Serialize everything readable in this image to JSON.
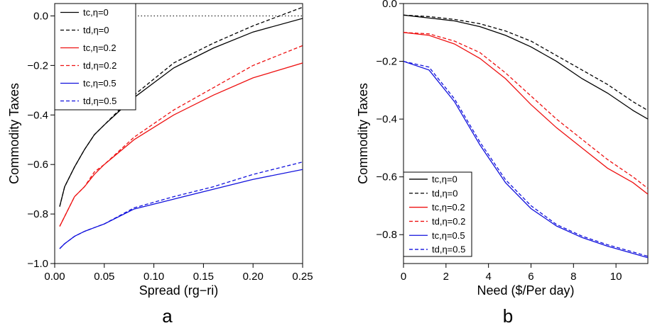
{
  "chart_data": [
    {
      "type": "line",
      "panel_label": "a",
      "xlabel": "Spread (rg−ri)",
      "ylabel": "Commodity Taxes",
      "xlim": [
        0.0,
        0.25
      ],
      "ylim": [
        -1.0,
        0.05
      ],
      "xticks": [
        0.0,
        0.05,
        0.1,
        0.15,
        0.2,
        0.25
      ],
      "xtick_labels": [
        "0.00",
        "0.05",
        "0.10",
        "0.15",
        "0.20",
        "0.25"
      ],
      "yticks": [
        -1.0,
        -0.8,
        -0.6,
        -0.4,
        -0.2,
        0.0
      ],
      "ytick_labels": [
        "−1.0",
        "−0.8",
        "−0.6",
        "−0.4",
        "−0.2",
        "0.0"
      ],
      "reference_line": {
        "y": 0.0,
        "style": "dotted"
      },
      "legend_position": "top-left",
      "series": [
        {
          "name": "tc,η=0",
          "color": "#000000",
          "dash": "solid",
          "x": [
            0.005,
            0.01,
            0.02,
            0.03,
            0.04,
            0.05,
            0.08,
            0.12,
            0.16,
            0.2,
            0.25
          ],
          "y": [
            -0.77,
            -0.69,
            -0.61,
            -0.54,
            -0.48,
            -0.44,
            -0.33,
            -0.21,
            -0.13,
            -0.065,
            -0.01
          ]
        },
        {
          "name": "td,η=0",
          "color": "#000000",
          "dash": "dashed",
          "x": [
            0.005,
            0.01,
            0.02,
            0.03,
            0.04,
            0.05,
            0.08,
            0.12,
            0.16,
            0.2,
            0.25
          ],
          "y": [
            -0.77,
            -0.69,
            -0.61,
            -0.54,
            -0.48,
            -0.44,
            -0.32,
            -0.19,
            -0.11,
            -0.04,
            0.035
          ]
        },
        {
          "name": "tc,η=0.2",
          "color": "#ee1111",
          "dash": "solid",
          "x": [
            0.005,
            0.01,
            0.02,
            0.03,
            0.04,
            0.05,
            0.08,
            0.12,
            0.16,
            0.2,
            0.25
          ],
          "y": [
            -0.85,
            -0.81,
            -0.73,
            -0.69,
            -0.64,
            -0.6,
            -0.5,
            -0.4,
            -0.32,
            -0.25,
            -0.19
          ]
        },
        {
          "name": "td,η=0.2",
          "color": "#ee1111",
          "dash": "dashed",
          "x": [
            0.005,
            0.01,
            0.02,
            0.03,
            0.04,
            0.05,
            0.08,
            0.12,
            0.16,
            0.2,
            0.25
          ],
          "y": [
            -0.85,
            -0.81,
            -0.73,
            -0.69,
            -0.63,
            -0.6,
            -0.49,
            -0.38,
            -0.29,
            -0.2,
            -0.12
          ]
        },
        {
          "name": "tc,η=0.5",
          "color": "#1111dd",
          "dash": "solid",
          "x": [
            0.005,
            0.01,
            0.02,
            0.03,
            0.04,
            0.05,
            0.08,
            0.12,
            0.16,
            0.2,
            0.25
          ],
          "y": [
            -0.94,
            -0.92,
            -0.89,
            -0.87,
            -0.855,
            -0.84,
            -0.78,
            -0.74,
            -0.7,
            -0.66,
            -0.62
          ]
        },
        {
          "name": "td,η=0.5",
          "color": "#1111dd",
          "dash": "dashed",
          "x": [
            0.005,
            0.01,
            0.02,
            0.03,
            0.04,
            0.05,
            0.08,
            0.12,
            0.16,
            0.2,
            0.25
          ],
          "y": [
            -0.94,
            -0.92,
            -0.89,
            -0.87,
            -0.855,
            -0.84,
            -0.775,
            -0.73,
            -0.69,
            -0.64,
            -0.59
          ]
        }
      ]
    },
    {
      "type": "line",
      "panel_label": "b",
      "xlabel": "Need ($/Per day)",
      "ylabel": "Commodity Taxes",
      "xlim": [
        0,
        11.5
      ],
      "ylim": [
        -0.9,
        0.0
      ],
      "xticks": [
        0,
        2,
        4,
        6,
        8,
        10
      ],
      "xtick_labels": [
        "0",
        "2",
        "4",
        "6",
        "8",
        "10"
      ],
      "yticks": [
        -0.8,
        -0.6,
        -0.4,
        -0.2,
        0.0
      ],
      "ytick_labels": [
        "−0.8",
        "−0.6",
        "−0.4",
        "−0.2",
        "0.0"
      ],
      "legend_position": "bottom-left",
      "series": [
        {
          "name": "tc,η=0",
          "color": "#000000",
          "dash": "solid",
          "x": [
            0,
            1.2,
            2.4,
            3.6,
            4.8,
            6.0,
            7.2,
            8.4,
            9.6,
            10.8,
            11.5
          ],
          "y": [
            -0.04,
            -0.05,
            -0.06,
            -0.08,
            -0.11,
            -0.15,
            -0.2,
            -0.26,
            -0.31,
            -0.37,
            -0.4
          ]
        },
        {
          "name": "td,η=0",
          "color": "#000000",
          "dash": "dashed",
          "x": [
            0,
            1.2,
            2.4,
            3.6,
            4.8,
            6.0,
            7.2,
            8.4,
            9.6,
            10.8,
            11.5
          ],
          "y": [
            -0.04,
            -0.045,
            -0.055,
            -0.07,
            -0.095,
            -0.13,
            -0.18,
            -0.23,
            -0.28,
            -0.34,
            -0.37
          ]
        },
        {
          "name": "tc,η=0.2",
          "color": "#ee1111",
          "dash": "solid",
          "x": [
            0,
            1.2,
            2.4,
            3.6,
            4.8,
            6.0,
            7.2,
            8.4,
            9.6,
            10.8,
            11.5
          ],
          "y": [
            -0.1,
            -0.11,
            -0.14,
            -0.19,
            -0.26,
            -0.35,
            -0.43,
            -0.5,
            -0.57,
            -0.62,
            -0.66
          ]
        },
        {
          "name": "td,η=0.2",
          "color": "#ee1111",
          "dash": "dashed",
          "x": [
            0,
            1.2,
            2.4,
            3.6,
            4.8,
            6.0,
            7.2,
            8.4,
            9.6,
            10.8,
            11.5
          ],
          "y": [
            -0.1,
            -0.105,
            -0.13,
            -0.17,
            -0.24,
            -0.32,
            -0.4,
            -0.47,
            -0.54,
            -0.6,
            -0.64
          ]
        },
        {
          "name": "tc,η=0.5",
          "color": "#1111dd",
          "dash": "solid",
          "x": [
            0,
            1.2,
            2.4,
            3.6,
            4.8,
            6.0,
            7.2,
            8.4,
            9.6,
            10.8,
            11.5
          ],
          "y": [
            -0.2,
            -0.23,
            -0.34,
            -0.49,
            -0.62,
            -0.71,
            -0.77,
            -0.81,
            -0.84,
            -0.865,
            -0.88
          ]
        },
        {
          "name": "td,η=0.5",
          "color": "#1111dd",
          "dash": "dashed",
          "x": [
            0,
            1.2,
            2.4,
            3.6,
            4.8,
            6.0,
            7.2,
            8.4,
            9.6,
            10.8,
            11.5
          ],
          "y": [
            -0.2,
            -0.22,
            -0.33,
            -0.48,
            -0.61,
            -0.7,
            -0.765,
            -0.805,
            -0.835,
            -0.86,
            -0.875
          ]
        }
      ]
    }
  ]
}
